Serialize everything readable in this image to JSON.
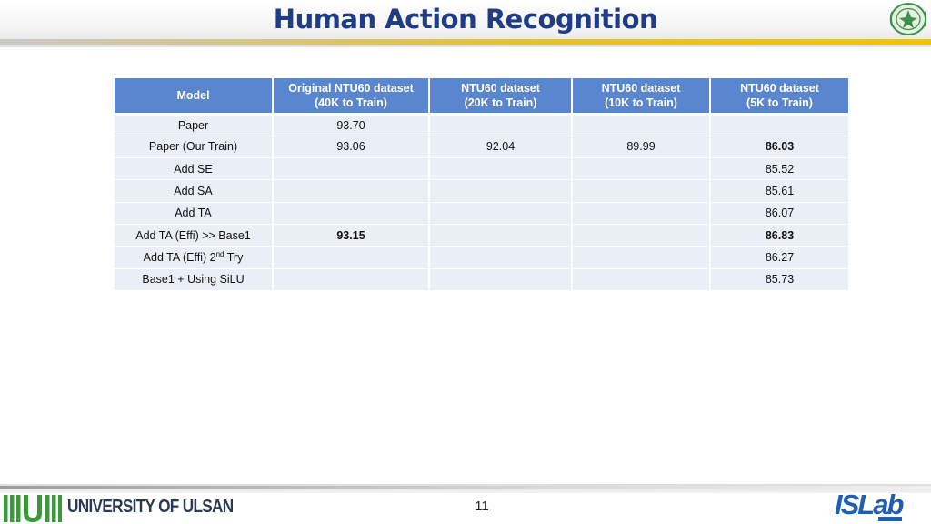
{
  "header": {
    "title": "Human Action Recognition"
  },
  "table": {
    "columns": [
      {
        "line1": "Model",
        "line2": ""
      },
      {
        "line1": "Original NTU60 dataset",
        "line2": "(40K to Train)"
      },
      {
        "line1": "NTU60 dataset",
        "line2": "(20K to Train)"
      },
      {
        "line1": "NTU60 dataset",
        "line2": "(10K to Train)"
      },
      {
        "line1": "NTU60 dataset",
        "line2": "(5K to Train)"
      }
    ],
    "rows": [
      {
        "model": "Paper",
        "c40k": "93.70",
        "c20k": "",
        "c10k": "",
        "c5k": ""
      },
      {
        "model": "Paper (Our Train)",
        "c40k": "93.06",
        "c20k": "92.04",
        "c10k": "89.99",
        "c5k": "86.03"
      },
      {
        "model": "Add SE",
        "c40k": "",
        "c20k": "",
        "c10k": "",
        "c5k": "85.52"
      },
      {
        "model": "Add SA",
        "c40k": "",
        "c20k": "",
        "c10k": "",
        "c5k": "85.61"
      },
      {
        "model": "Add TA",
        "c40k": "",
        "c20k": "",
        "c10k": "",
        "c5k": "86.07"
      },
      {
        "model": "Add TA (Effi) >> Base1",
        "c40k": "93.15",
        "c20k": "",
        "c10k": "",
        "c5k": "86.83"
      },
      {
        "model_prefix": "Add TA (Effi) 2",
        "model_sup": "nd",
        "model_suffix": " Try",
        "c40k": "",
        "c20k": "",
        "c10k": "",
        "c5k": "86.27"
      },
      {
        "model": "Base1 + Using SiLU",
        "c40k": "",
        "c20k": "",
        "c10k": "",
        "c5k": "85.73"
      }
    ]
  },
  "footer": {
    "university": "UNIVERSITY OF ULSAN",
    "page_number": "11",
    "lab_logo": "ISLab"
  },
  "colors": {
    "title": "#1f3d86",
    "table_header": "#5a86cf",
    "table_cell": "#e9eef7",
    "accent_line": "#f2c400",
    "university_green": "#3a9a3a",
    "islab_blue": "#1f5fb3"
  },
  "icons": [
    "university-seal-icon",
    "university-of-ulsan-logo",
    "islab-logo"
  ]
}
